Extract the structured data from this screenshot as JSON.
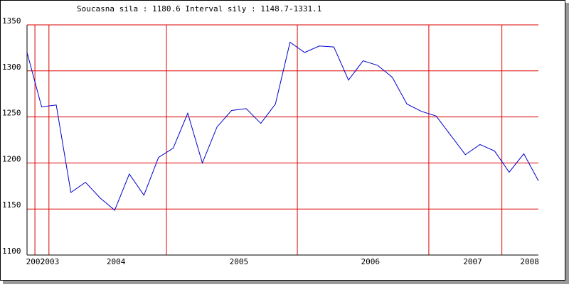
{
  "chart_data": {
    "type": "line",
    "title": "Soucasna sila : 1180.6  Interval sily : 1148.7-1331.1",
    "x": [
      0,
      1,
      2,
      3,
      4,
      5,
      6,
      7,
      8,
      9,
      10,
      11,
      12,
      13,
      14,
      15,
      16,
      17,
      18,
      19,
      20,
      21,
      22,
      23,
      24,
      25,
      26,
      27,
      28,
      29,
      30,
      31,
      32,
      33,
      34,
      35
    ],
    "series": [
      {
        "color": "#0000cc",
        "values": [
          1320,
          1261,
          1263,
          1168,
          1179,
          1162,
          1148.7,
          1188,
          1165,
          1206,
          1216,
          1254,
          1200,
          1239,
          1257,
          1259,
          1243,
          1264,
          1331.1,
          1320,
          1327,
          1326,
          1290,
          1311,
          1306,
          1293,
          1264,
          1256,
          1251,
          1230,
          1209,
          1220,
          1213,
          1190,
          1210,
          1180.6
        ]
      }
    ],
    "xlim": [
      0,
      35
    ],
    "xticks": [
      {
        "value": 0.58,
        "label": "2002"
      },
      {
        "value": 1.56,
        "label": "2003"
      },
      {
        "value": 6.09,
        "label": "2004"
      },
      {
        "value": 14.5,
        "label": "2005"
      },
      {
        "value": 23.5,
        "label": "2006"
      },
      {
        "value": 30.5,
        "label": "2007"
      },
      {
        "value": 34.4,
        "label": "2008"
      }
    ],
    "xgrid": [
      0.54,
      1.5,
      9.54,
      18.5,
      27.5,
      32.5
    ],
    "ylim": [
      1100,
      1350
    ],
    "yticks": [
      1100,
      1150,
      1200,
      1250,
      1300,
      1350
    ],
    "grid": true,
    "grid_color": "#dd0000"
  }
}
